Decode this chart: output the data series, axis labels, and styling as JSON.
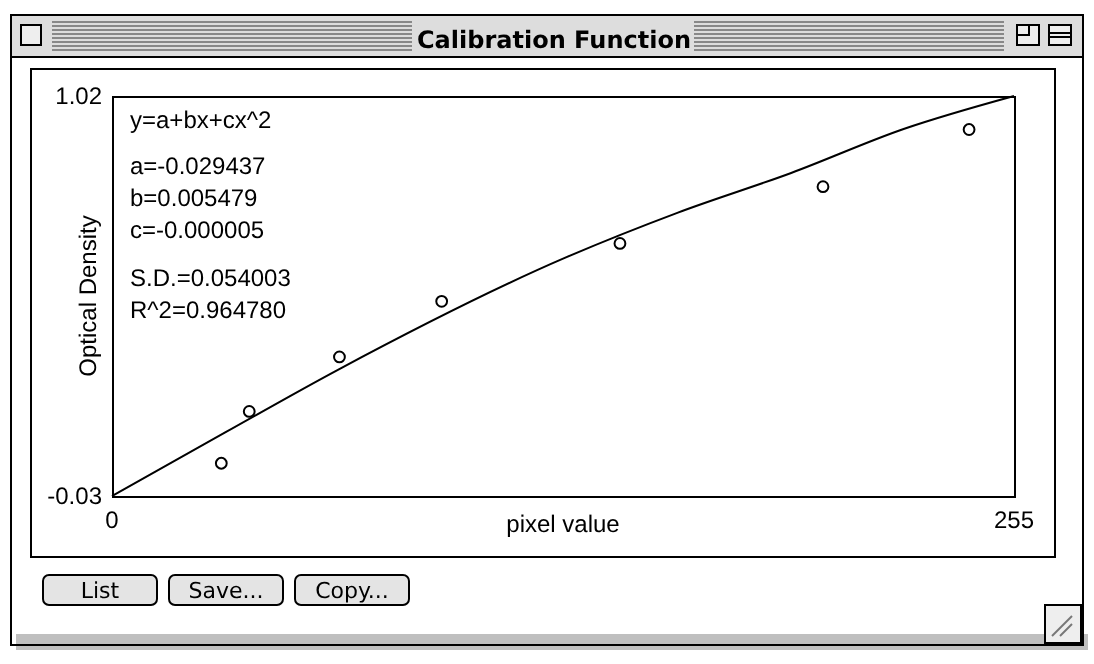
{
  "chart_data": {
    "type": "scatter",
    "title": "Calibration Function",
    "xlabel": "pixel value",
    "ylabel": "Optical Density",
    "xlim": [
      0,
      255
    ],
    "xticks": [
      0,
      255
    ],
    "ylim": [
      -0.03,
      1.02
    ],
    "yticks": [
      -0.03,
      1.02
    ],
    "grid": false,
    "annotations": [
      "y=a+bx+cx^2",
      "a=-0.029437",
      "b=0.005479",
      "c=-0.000005",
      "S.D.=0.054003",
      "R^2=0.964780",
      "List",
      "Save...",
      "Copy..."
    ],
    "series": [
      {
        "color": "#000000",
        "marker": "circle",
        "x": [
          30.9,
          38.8,
          64.3,
          93.2,
          143.6,
          201.0,
          242.3
        ],
        "values": [
          0.056,
          0.192,
          0.335,
          0.481,
          0.633,
          0.782,
          0.932
        ]
      },
      {
        "type": "line",
        "color": "#000000",
        "marker": "none",
        "line_style": "solid",
        "x": [
          0,
          32,
          64,
          128,
          160,
          192,
          224,
          255
        ],
        "values": [
          -0.03,
          0.137,
          0.302,
          0.595,
          0.714,
          0.818,
          0.934,
          1.02
        ]
      }
    ]
  }
}
